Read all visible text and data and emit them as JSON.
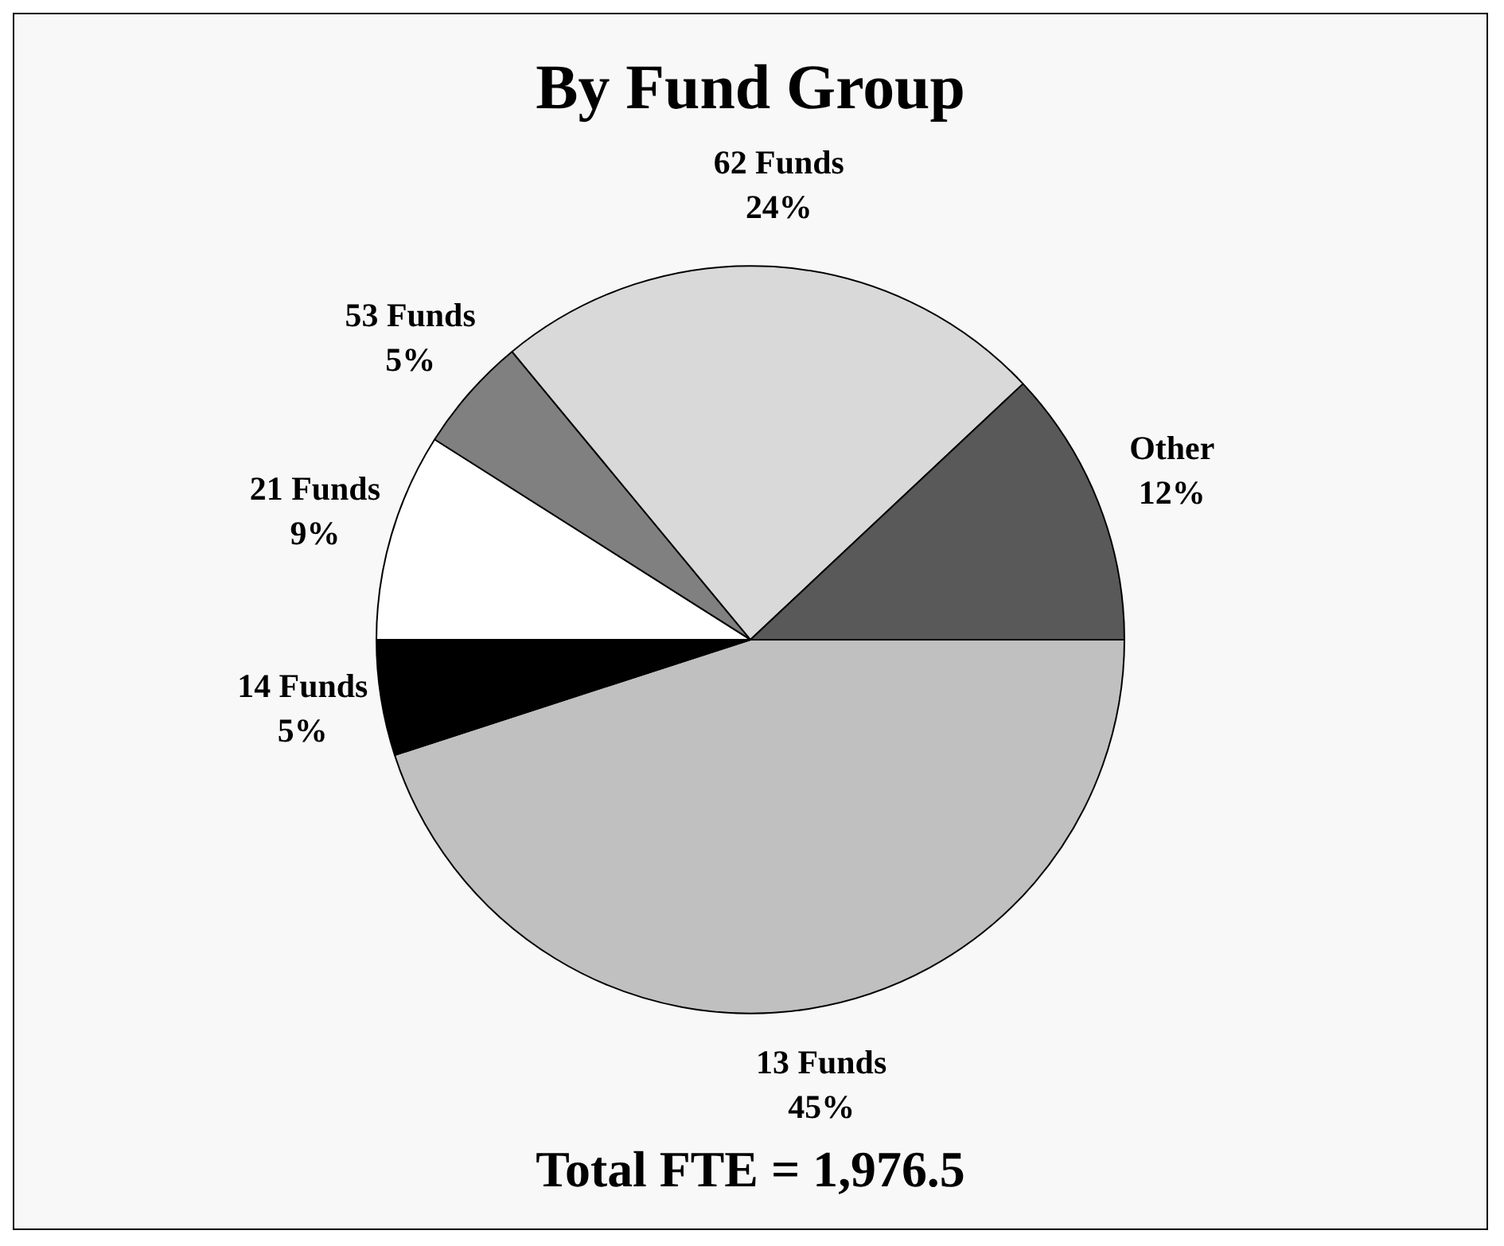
{
  "chart_data": {
    "type": "pie",
    "title": "By Fund Group",
    "categories": [
      "13 Funds",
      "14 Funds",
      "21 Funds",
      "53 Funds",
      "62 Funds",
      "Other"
    ],
    "values": [
      45,
      5,
      9,
      5,
      24,
      12
    ],
    "colors": [
      "#c0c0c0",
      "#000000",
      "#ffffff",
      "#808080",
      "#d9d9d9",
      "#595959"
    ],
    "value_labels": [
      "45%",
      "5%",
      "9%",
      "5%",
      "24%",
      "12%"
    ],
    "annotations": [
      "Total FTE = 1,976.5"
    ],
    "legend": false
  }
}
